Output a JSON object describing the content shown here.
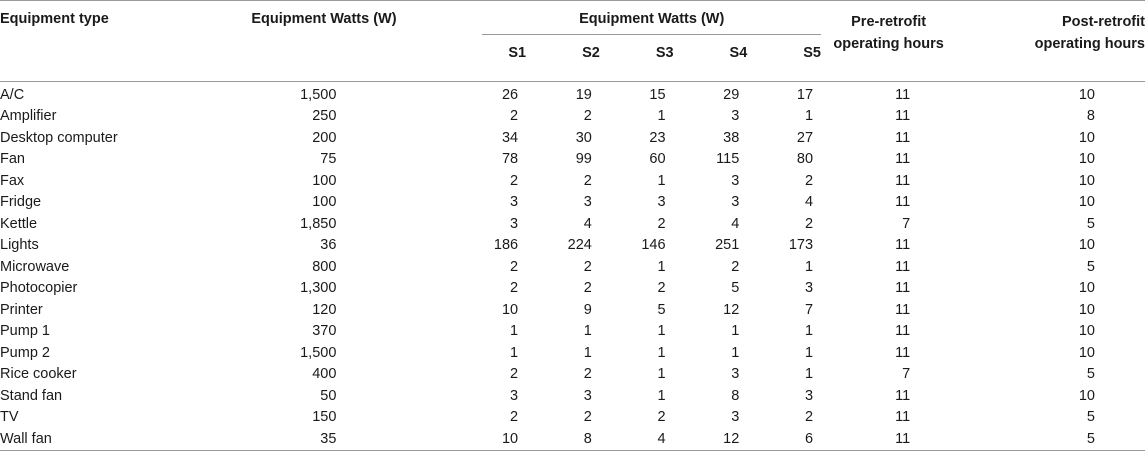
{
  "headers": {
    "equipment_type": "Equipment type",
    "equipment_watts": "Equipment Watts (W)",
    "group_label": "Equipment Watts (W)",
    "sites": [
      "S1",
      "S2",
      "S3",
      "S4",
      "S5"
    ],
    "pre_line1": "Pre-retrofit",
    "pre_line2": "operating hours",
    "post_line1": "Post-retrofit",
    "post_line2": "operating hours"
  },
  "rows": [
    {
      "type": "A/C",
      "watts": "1,500",
      "s": [
        "26",
        "19",
        "15",
        "29",
        "17"
      ],
      "pre": "11",
      "post": "10"
    },
    {
      "type": "Amplifier",
      "watts": "250",
      "s": [
        "2",
        "2",
        "1",
        "3",
        "1"
      ],
      "pre": "11",
      "post": "8"
    },
    {
      "type": "Desktop computer",
      "watts": "200",
      "s": [
        "34",
        "30",
        "23",
        "38",
        "27"
      ],
      "pre": "11",
      "post": "10"
    },
    {
      "type": "Fan",
      "watts": "75",
      "s": [
        "78",
        "99",
        "60",
        "115",
        "80"
      ],
      "pre": "11",
      "post": "10"
    },
    {
      "type": "Fax",
      "watts": "100",
      "s": [
        "2",
        "2",
        "1",
        "3",
        "2"
      ],
      "pre": "11",
      "post": "10"
    },
    {
      "type": "Fridge",
      "watts": "100",
      "s": [
        "3",
        "3",
        "3",
        "3",
        "4"
      ],
      "pre": "11",
      "post": "10"
    },
    {
      "type": "Kettle",
      "watts": "1,850",
      "s": [
        "3",
        "4",
        "2",
        "4",
        "2"
      ],
      "pre": "7",
      "post": "5"
    },
    {
      "type": "Lights",
      "watts": "36",
      "s": [
        "186",
        "224",
        "146",
        "251",
        "173"
      ],
      "pre": "11",
      "post": "10"
    },
    {
      "type": "Microwave",
      "watts": "800",
      "s": [
        "2",
        "2",
        "1",
        "2",
        "1"
      ],
      "pre": "11",
      "post": "5"
    },
    {
      "type": "Photocopier",
      "watts": "1,300",
      "s": [
        "2",
        "2",
        "2",
        "5",
        "3"
      ],
      "pre": "11",
      "post": "10"
    },
    {
      "type": "Printer",
      "watts": "120",
      "s": [
        "10",
        "9",
        "5",
        "12",
        "7"
      ],
      "pre": "11",
      "post": "10"
    },
    {
      "type": "Pump 1",
      "watts": "370",
      "s": [
        "1",
        "1",
        "1",
        "1",
        "1"
      ],
      "pre": "11",
      "post": "10"
    },
    {
      "type": "Pump 2",
      "watts": "1,500",
      "s": [
        "1",
        "1",
        "1",
        "1",
        "1"
      ],
      "pre": "11",
      "post": "10"
    },
    {
      "type": "Rice cooker",
      "watts": "400",
      "s": [
        "2",
        "2",
        "1",
        "3",
        "1"
      ],
      "pre": "7",
      "post": "5"
    },
    {
      "type": "Stand fan",
      "watts": "50",
      "s": [
        "3",
        "3",
        "1",
        "8",
        "3"
      ],
      "pre": "11",
      "post": "10"
    },
    {
      "type": "TV",
      "watts": "150",
      "s": [
        "2",
        "2",
        "2",
        "3",
        "2"
      ],
      "pre": "11",
      "post": "5"
    },
    {
      "type": "Wall fan",
      "watts": "35",
      "s": [
        "10",
        "8",
        "4",
        "12",
        "6"
      ],
      "pre": "11",
      "post": "5"
    }
  ]
}
